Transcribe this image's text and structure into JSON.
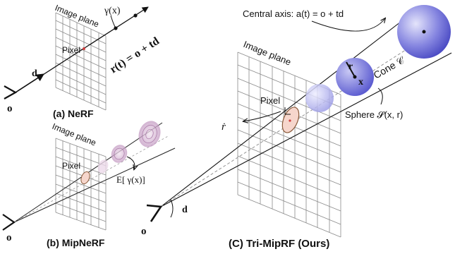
{
  "panel_a": {
    "caption": "(a) NeRF",
    "image_plane_label": "Image plane",
    "pixel_label": "Pixel",
    "encoding_label": "γ(x)",
    "ray_equation": "r(t) = o + td",
    "direction_label": "d",
    "origin_label": "o"
  },
  "panel_b": {
    "caption": "(b) MipNeRF",
    "image_plane_label": "Image plane",
    "pixel_label": "Pixel",
    "expectation_label": "E[ γ(x)]",
    "origin_label": "o"
  },
  "panel_c": {
    "caption": "(C) Tri-MipRF (Ours)",
    "image_plane_label": "Image plane",
    "pixel_label": "Pixel",
    "central_axis_label": "Central axis: a(t) = o + td",
    "cone_label": "Cone 𝒞",
    "sphere_label": "Sphere 𝓢(x, r)",
    "radius_label": "r",
    "center_label": "x",
    "pixel_radius_label": "ṙ",
    "direction_label": "d",
    "origin_label": "o"
  },
  "colors": {
    "sphere_dark": "#5a5ad0",
    "sphere_light": "#d6d6f4",
    "ellipse_pink": "#f6d6cc",
    "mip_pink": "#c69ac4",
    "pixel_red": "#d04040"
  }
}
